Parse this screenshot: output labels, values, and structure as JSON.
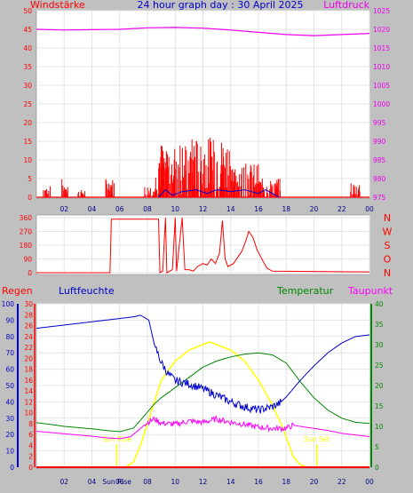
{
  "title": "24 hour graph day : 30 April 2025",
  "colors": {
    "background": "#c0c0c0",
    "plot": "#ffffff",
    "wind": "#ff0000",
    "gust": "#0000cc",
    "pressure": "#ee00ee",
    "direction": "#ff0000",
    "humidity": "#0000cc",
    "temperature": "#008800",
    "dewpoint": "#ff00ff",
    "solar": "#ffff00",
    "rain": "#ff0000",
    "sun_marker": "#ffff00"
  },
  "x_ticks": [
    "02",
    "04",
    "06",
    "08",
    "10",
    "12",
    "14",
    "16",
    "18",
    "20",
    "22",
    "00"
  ],
  "chart_data": [
    {
      "type": "bar",
      "name": "wind-pressure",
      "left_label": "Windstärke",
      "right_label": "Luftdruck",
      "x_range": [
        0,
        24
      ],
      "left_ylim": [
        0,
        50
      ],
      "left_ticks": [
        "0",
        "5",
        "10",
        "15",
        "20",
        "25",
        "30",
        "35",
        "40",
        "45",
        "50"
      ],
      "right_ylim": [
        975,
        1025
      ],
      "right_ticks": [
        "975",
        "980",
        "985",
        "990",
        "995",
        "1000",
        "1005",
        "1010",
        "1015",
        "1020",
        "1025"
      ],
      "wind_bursts": [
        {
          "x": [
            0.5,
            1.0
          ],
          "max": 3
        },
        {
          "x": [
            1.8,
            2.3
          ],
          "max": 5
        },
        {
          "x": [
            3.0,
            3.5
          ],
          "max": 2
        },
        {
          "x": [
            5.0,
            5.6
          ],
          "max": 5
        },
        {
          "x": [
            7.8,
            8.6
          ],
          "max": 3
        },
        {
          "x": [
            8.6,
            11.0
          ],
          "max": 15
        },
        {
          "x": [
            11.0,
            14.0
          ],
          "max": 16
        },
        {
          "x": [
            14.0,
            16.0
          ],
          "max": 9
        },
        {
          "x": [
            16.0,
            17.6
          ],
          "max": 5
        },
        {
          "x": [
            22.6,
            23.4
          ],
          "max": 4
        }
      ],
      "gust_points": [
        [
          8.8,
          0
        ],
        [
          9.3,
          2
        ],
        [
          9.8,
          0.5
        ],
        [
          10.5,
          1.5
        ],
        [
          11.5,
          2
        ],
        [
          12.3,
          1
        ],
        [
          13.0,
          2
        ],
        [
          14.0,
          1.5
        ],
        [
          15.0,
          2
        ],
        [
          16.0,
          1
        ],
        [
          16.5,
          2
        ],
        [
          17.5,
          0
        ]
      ],
      "pressure": [
        [
          0,
          1020.0
        ],
        [
          2,
          1019.8
        ],
        [
          4,
          1019.9
        ],
        [
          6,
          1020.0
        ],
        [
          8,
          1020.4
        ],
        [
          10,
          1020.5
        ],
        [
          12,
          1020.3
        ],
        [
          14,
          1019.8
        ],
        [
          16,
          1019.2
        ],
        [
          18,
          1018.6
        ],
        [
          20,
          1018.3
        ],
        [
          22,
          1018.6
        ],
        [
          24,
          1018.9
        ]
      ]
    },
    {
      "type": "line",
      "name": "wind-direction",
      "ylim": [
        0,
        360
      ],
      "left_ticks": [
        "0",
        "90",
        "180",
        "270",
        "360"
      ],
      "right_ticks": [
        "N",
        "W",
        "S",
        "O",
        "N"
      ],
      "points": [
        [
          0,
          0
        ],
        [
          5.3,
          0
        ],
        [
          5.4,
          350
        ],
        [
          8.8,
          350
        ],
        [
          8.9,
          0
        ],
        [
          9.1,
          10
        ],
        [
          9.3,
          360
        ],
        [
          9.4,
          0
        ],
        [
          9.8,
          20
        ],
        [
          10.0,
          360
        ],
        [
          10.1,
          10
        ],
        [
          10.5,
          360
        ],
        [
          10.7,
          20
        ],
        [
          11.0,
          20
        ],
        [
          11.3,
          10
        ],
        [
          11.6,
          40
        ],
        [
          12.0,
          60
        ],
        [
          12.3,
          50
        ],
        [
          12.6,
          90
        ],
        [
          12.9,
          60
        ],
        [
          13.2,
          130
        ],
        [
          13.4,
          340
        ],
        [
          13.6,
          90
        ],
        [
          13.8,
          40
        ],
        [
          14.2,
          60
        ],
        [
          14.5,
          100
        ],
        [
          14.8,
          140
        ],
        [
          15.1,
          210
        ],
        [
          15.3,
          270
        ],
        [
          15.6,
          230
        ],
        [
          15.9,
          150
        ],
        [
          16.3,
          80
        ],
        [
          16.6,
          30
        ],
        [
          17.0,
          10
        ],
        [
          24,
          5
        ]
      ]
    },
    {
      "type": "line",
      "name": "weather",
      "left_label": "Regen",
      "left2_label": "Luftfeuchte",
      "right_label": "Temperatur",
      "right2_label": "Taupunkt",
      "x_range": [
        0,
        24
      ],
      "humidity_ylim": [
        0,
        100
      ],
      "humidity_ticks": [
        "0",
        "10",
        "20",
        "30",
        "40",
        "50",
        "60",
        "70",
        "80",
        "90",
        "100"
      ],
      "rain_ylim": [
        0,
        30
      ],
      "rain_ticks": [
        "0",
        "2",
        "4",
        "6",
        "8",
        "10",
        "12",
        "14",
        "16",
        "18",
        "20",
        "22",
        "24",
        "26",
        "28",
        "30"
      ],
      "temperature_ylim": [
        0,
        40
      ],
      "temperature_ticks": [
        "0",
        "5",
        "10",
        "15",
        "20",
        "25",
        "30",
        "35",
        "40"
      ],
      "humidity": [
        [
          0,
          85
        ],
        [
          1,
          86
        ],
        [
          2,
          87
        ],
        [
          3,
          88
        ],
        [
          4,
          89
        ],
        [
          5,
          90
        ],
        [
          6,
          91
        ],
        [
          7,
          92
        ],
        [
          7.5,
          93
        ],
        [
          8.1,
          90
        ],
        [
          8.5,
          75
        ],
        [
          9,
          64
        ],
        [
          9.5,
          57
        ],
        [
          10,
          53
        ],
        [
          11,
          51
        ],
        [
          12,
          48
        ],
        [
          13,
          44
        ],
        [
          14,
          40
        ],
        [
          15,
          37
        ],
        [
          16,
          35
        ],
        [
          17,
          37
        ],
        [
          17.5,
          39
        ],
        [
          18,
          43
        ],
        [
          19,
          53
        ],
        [
          20,
          62
        ],
        [
          21,
          70
        ],
        [
          22,
          76
        ],
        [
          23,
          80
        ],
        [
          24,
          81
        ]
      ],
      "temperature": [
        [
          0,
          10.9
        ],
        [
          1,
          10.5
        ],
        [
          2,
          10.0
        ],
        [
          3,
          9.7
        ],
        [
          4,
          9.4
        ],
        [
          5,
          9.0
        ],
        [
          6,
          8.7
        ],
        [
          7,
          9.6
        ],
        [
          7.5,
          11.5
        ],
        [
          8,
          13.5
        ],
        [
          8.5,
          15.5
        ],
        [
          9,
          17.0
        ],
        [
          10,
          19.5
        ],
        [
          11,
          22.0
        ],
        [
          12,
          24.5
        ],
        [
          13,
          26.0
        ],
        [
          14,
          27.0
        ],
        [
          15,
          27.7
        ],
        [
          16,
          28.0
        ],
        [
          17,
          27.5
        ],
        [
          18,
          25.5
        ],
        [
          19,
          21.0
        ],
        [
          20,
          17.0
        ],
        [
          21,
          14.0
        ],
        [
          22,
          12.0
        ],
        [
          23,
          11.0
        ],
        [
          24,
          10.7
        ]
      ],
      "dewpoint": [
        [
          0,
          8.8
        ],
        [
          1,
          8.5
        ],
        [
          2,
          8.2
        ],
        [
          3,
          7.9
        ],
        [
          4,
          7.6
        ],
        [
          5,
          7.2
        ],
        [
          6,
          7.0
        ],
        [
          6.8,
          7.5
        ],
        [
          7.5,
          9.5
        ],
        [
          8,
          11.0
        ],
        [
          8.5,
          11.8
        ],
        [
          9,
          10.8
        ],
        [
          10,
          10.5
        ],
        [
          11,
          11.3
        ],
        [
          12,
          11.0
        ],
        [
          13,
          11.8
        ],
        [
          14,
          11.0
        ],
        [
          15,
          10.5
        ],
        [
          16,
          9.8
        ],
        [
          17,
          9.5
        ],
        [
          18,
          9.5
        ],
        [
          18.5,
          10.3
        ],
        [
          19,
          10.0
        ],
        [
          20,
          9.5
        ],
        [
          21,
          9.0
        ],
        [
          22,
          8.3
        ],
        [
          23,
          7.9
        ],
        [
          24,
          7.5
        ]
      ],
      "solar": [
        [
          0,
          0
        ],
        [
          6.1,
          0
        ],
        [
          6.5,
          0.1
        ],
        [
          7,
          1
        ],
        [
          7.5,
          4
        ],
        [
          8,
          8
        ],
        [
          8.5,
          12
        ],
        [
          9,
          16
        ],
        [
          10,
          19.5
        ],
        [
          11,
          21.5
        ],
        [
          12,
          22.5
        ],
        [
          12.5,
          23
        ],
        [
          13,
          22.5
        ],
        [
          14,
          21.5
        ],
        [
          15,
          19.5
        ],
        [
          16,
          16
        ],
        [
          17,
          11.5
        ],
        [
          17.8,
          7
        ],
        [
          18.5,
          2
        ],
        [
          19,
          0.5
        ],
        [
          19.5,
          0
        ],
        [
          24,
          0
        ]
      ],
      "rain": [
        [
          0,
          0
        ],
        [
          24,
          0
        ]
      ],
      "sun_rise_label": "Sun Rise",
      "sun_set_label": "Sun Set",
      "sun_rise_time": 5.8,
      "sun_set_time": 20.2
    }
  ]
}
